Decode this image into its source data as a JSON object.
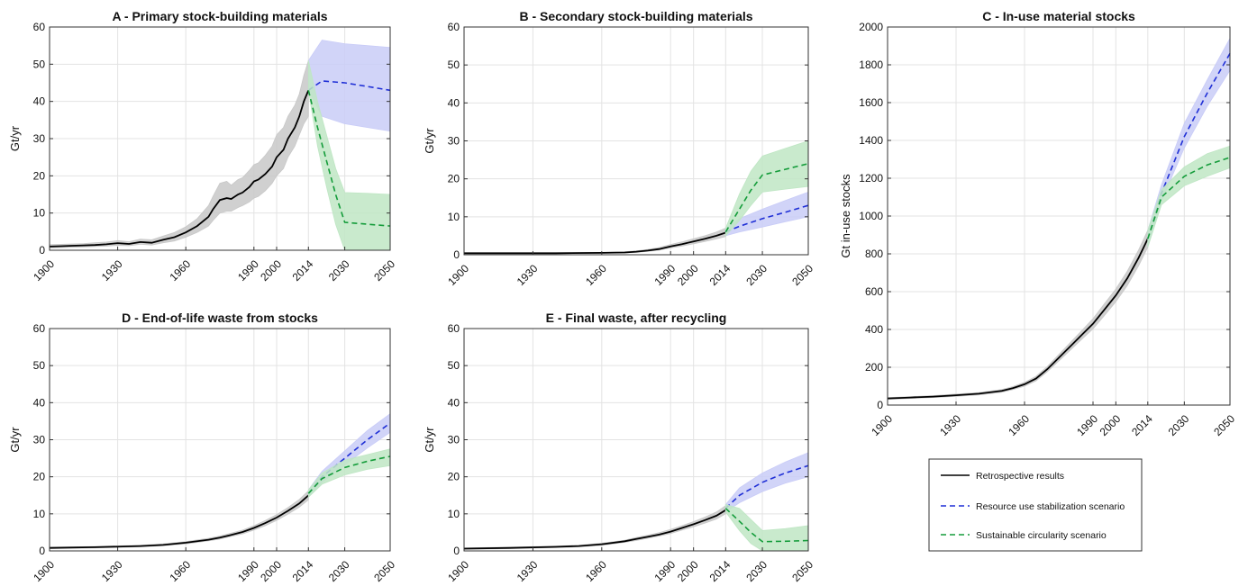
{
  "colors": {
    "historical": "#000000",
    "historical_band": "#c8c8c8",
    "stabilization": "#1f2fd6",
    "stabilization_band": "#c9ccf7",
    "circularity": "#149c3a",
    "circularity_band": "#bfe6c4",
    "grid": "#e3e3e3"
  },
  "legend": {
    "entries": [
      {
        "label": "Retrospective results",
        "style": "solid",
        "color": "#000000"
      },
      {
        "label": "Resource use stabilization scenario",
        "style": "dashed",
        "color": "#1f2fd6"
      },
      {
        "label": "Sustainable circularity scenario",
        "style": "dashed",
        "color": "#149c3a"
      }
    ]
  },
  "chart_data": [
    {
      "id": "A",
      "type": "line",
      "title": "A - Primary stock-building materials",
      "ylabel": "Gt/yr",
      "ylim": [
        0,
        60
      ],
      "yticks": [
        0,
        10,
        20,
        30,
        40,
        50,
        60
      ],
      "xticks": [
        1900,
        1930,
        1960,
        1990,
        2000,
        2014,
        2030,
        2050
      ],
      "grid": true,
      "series": [
        {
          "kind": "historical",
          "x": [
            1900,
            1905,
            1910,
            1915,
            1920,
            1925,
            1930,
            1935,
            1940,
            1945,
            1950,
            1955,
            1960,
            1965,
            1970,
            1972,
            1975,
            1978,
            1980,
            1983,
            1985,
            1988,
            1990,
            1992,
            1995,
            1998,
            2000,
            2003,
            2005,
            2008,
            2010,
            2012,
            2014
          ],
          "y": [
            1,
            1.1,
            1.2,
            1.3,
            1.4,
            1.6,
            1.9,
            1.7,
            2.2,
            2.0,
            2.8,
            3.5,
            4.8,
            6.5,
            9.0,
            11.0,
            13.5,
            14.0,
            13.8,
            15.0,
            15.5,
            17.0,
            18.5,
            19.0,
            20.5,
            22.5,
            25.0,
            27.0,
            30.0,
            33.0,
            36.0,
            40.0,
            43.0
          ],
          "lower": [
            0.6,
            0.7,
            0.8,
            0.9,
            1.0,
            1.1,
            1.3,
            1.2,
            1.6,
            1.4,
            2.0,
            2.5,
            3.5,
            4.8,
            6.5,
            8.0,
            10.0,
            10.5,
            10.5,
            11.5,
            12.0,
            13.0,
            14.0,
            14.5,
            16.0,
            18.0,
            20.0,
            22.0,
            25.0,
            28.0,
            31.0,
            34.0,
            36.0
          ],
          "upper": [
            1.5,
            1.6,
            1.7,
            1.8,
            2.0,
            2.2,
            2.6,
            2.3,
            3.0,
            2.8,
            3.8,
            4.8,
            6.3,
            8.5,
            12.0,
            14.5,
            18.0,
            18.5,
            17.5,
            19.0,
            19.5,
            21.5,
            23.0,
            23.5,
            25.5,
            28.0,
            31.0,
            33.0,
            36.0,
            39.0,
            42.0,
            47.0,
            51.0
          ]
        },
        {
          "name": "Resource use stabilization scenario",
          "kind": "stabilization",
          "x": [
            2014,
            2020,
            2030,
            2040,
            2050
          ],
          "y": [
            43,
            45.5,
            45,
            44,
            43
          ],
          "lower": [
            43,
            36,
            34,
            33,
            32
          ],
          "upper": [
            51,
            56.5,
            55.5,
            55,
            54.5
          ]
        },
        {
          "name": "Sustainable circularity scenario",
          "kind": "circularity",
          "x": [
            2014,
            2018,
            2022,
            2026,
            2030,
            2040,
            2050
          ],
          "y": [
            43,
            33,
            24,
            15,
            7.5,
            7.0,
            6.5
          ],
          "lower": [
            43,
            28,
            17,
            7,
            0,
            0,
            0
          ],
          "upper": [
            51,
            40,
            31,
            22,
            15.5,
            15.3,
            15.0
          ]
        }
      ]
    },
    {
      "id": "B",
      "type": "line",
      "title": "B - Secondary stock-building materials",
      "ylabel": "Gt/yr",
      "ylim": [
        0,
        60
      ],
      "yticks": [
        0,
        10,
        20,
        30,
        40,
        50,
        60
      ],
      "xticks": [
        1900,
        1930,
        1960,
        1990,
        2000,
        2014,
        2030,
        2050
      ],
      "grid": true,
      "series": [
        {
          "kind": "historical",
          "x": [
            1900,
            1920,
            1940,
            1960,
            1970,
            1975,
            1980,
            1985,
            1990,
            1995,
            2000,
            2005,
            2010,
            2014
          ],
          "y": [
            0.4,
            0.4,
            0.4,
            0.5,
            0.6,
            0.8,
            1.1,
            1.5,
            2.2,
            2.8,
            3.5,
            4.2,
            5.0,
            5.8
          ],
          "lower": [
            0.3,
            0.3,
            0.3,
            0.4,
            0.5,
            0.6,
            0.9,
            1.2,
            1.8,
            2.3,
            2.9,
            3.5,
            4.2,
            4.8
          ],
          "upper": [
            0.5,
            0.5,
            0.5,
            0.6,
            0.8,
            1.0,
            1.4,
            1.9,
            2.7,
            3.4,
            4.2,
            5.0,
            6.0,
            7.0
          ]
        },
        {
          "name": "Resource use stabilization scenario",
          "kind": "stabilization",
          "x": [
            2014,
            2020,
            2030,
            2040,
            2050
          ],
          "y": [
            6,
            7.5,
            9.5,
            11.2,
            13
          ],
          "lower": [
            5,
            6.0,
            7.3,
            8.7,
            10
          ],
          "upper": [
            7,
            9.5,
            12.0,
            14.3,
            16.5
          ]
        },
        {
          "name": "Sustainable circularity scenario",
          "kind": "circularity",
          "x": [
            2014,
            2020,
            2025,
            2030,
            2040,
            2050
          ],
          "y": [
            6,
            12,
            17,
            21,
            22.5,
            24
          ],
          "lower": [
            5,
            9,
            13,
            16.5,
            17.3,
            18
          ],
          "upper": [
            7,
            16,
            22,
            26,
            28,
            30
          ]
        }
      ]
    },
    {
      "id": "C",
      "type": "line",
      "title": "C - In-use material stocks",
      "ylabel": "Gt in-use stocks",
      "ylim": [
        0,
        2000
      ],
      "yticks": [
        0,
        200,
        400,
        600,
        800,
        1000,
        1200,
        1400,
        1600,
        1800,
        2000
      ],
      "xticks": [
        1900,
        1930,
        1960,
        1990,
        2000,
        2014,
        2030,
        2050
      ],
      "grid": true,
      "series": [
        {
          "kind": "historical",
          "x": [
            1900,
            1910,
            1920,
            1930,
            1940,
            1950,
            1955,
            1960,
            1965,
            1970,
            1975,
            1980,
            1985,
            1990,
            1995,
            2000,
            2005,
            2010,
            2014
          ],
          "y": [
            35,
            40,
            45,
            52,
            60,
            75,
            90,
            110,
            140,
            190,
            250,
            310,
            370,
            430,
            505,
            580,
            670,
            780,
            880
          ],
          "lower": [
            30,
            35,
            40,
            46,
            54,
            68,
            82,
            100,
            128,
            176,
            233,
            290,
            347,
            403,
            474,
            546,
            632,
            738,
            835
          ],
          "upper": [
            40,
            45,
            50,
            58,
            66,
            82,
            98,
            120,
            152,
            204,
            267,
            330,
            393,
            457,
            536,
            614,
            708,
            822,
            925
          ]
        },
        {
          "name": "Resource use stabilization scenario",
          "kind": "stabilization",
          "x": [
            2014,
            2020,
            2030,
            2040,
            2050
          ],
          "y": [
            880,
            1120,
            1420,
            1650,
            1860
          ],
          "lower": [
            835,
            1080,
            1360,
            1580,
            1770
          ],
          "upper": [
            925,
            1165,
            1490,
            1720,
            1940
          ]
        },
        {
          "name": "Sustainable circularity scenario",
          "kind": "circularity",
          "x": [
            2014,
            2020,
            2030,
            2040,
            2050
          ],
          "y": [
            880,
            1100,
            1210,
            1270,
            1310
          ],
          "lower": [
            835,
            1060,
            1160,
            1210,
            1255
          ],
          "upper": [
            925,
            1140,
            1260,
            1330,
            1370
          ]
        }
      ]
    },
    {
      "id": "D",
      "type": "line",
      "title": "D - End-of-life waste from stocks",
      "ylabel": "Gt/yr",
      "ylim": [
        0,
        60
      ],
      "yticks": [
        0,
        10,
        20,
        30,
        40,
        50,
        60
      ],
      "xticks": [
        1900,
        1930,
        1960,
        1990,
        2000,
        2014,
        2030,
        2050
      ],
      "grid": true,
      "series": [
        {
          "kind": "historical",
          "x": [
            1900,
            1920,
            1940,
            1950,
            1960,
            1970,
            1975,
            1980,
            1985,
            1990,
            1995,
            2000,
            2005,
            2010,
            2014
          ],
          "y": [
            0.8,
            1.0,
            1.3,
            1.6,
            2.2,
            3.0,
            3.6,
            4.3,
            5.1,
            6.2,
            7.5,
            9.0,
            10.8,
            12.8,
            15.0
          ],
          "lower": [
            0.6,
            0.8,
            1.1,
            1.4,
            1.9,
            2.7,
            3.2,
            3.9,
            4.6,
            5.6,
            6.8,
            8.2,
            9.9,
            11.8,
            13.8
          ],
          "upper": [
            1.0,
            1.2,
            1.5,
            1.9,
            2.5,
            3.4,
            4.0,
            4.8,
            5.6,
            6.8,
            8.2,
            9.8,
            11.7,
            13.9,
            16.2
          ]
        },
        {
          "name": "Resource use stabilization scenario",
          "kind": "stabilization",
          "x": [
            2014,
            2020,
            2030,
            2040,
            2050
          ],
          "y": [
            15.5,
            20,
            25,
            30,
            34.5
          ],
          "lower": [
            14.5,
            18.5,
            23.2,
            27.8,
            32
          ],
          "upper": [
            16.5,
            21.5,
            27,
            32.5,
            37
          ]
        },
        {
          "name": "Sustainable circularity scenario",
          "kind": "circularity",
          "x": [
            2014,
            2020,
            2030,
            2040,
            2050
          ],
          "y": [
            15.5,
            19.5,
            22.5,
            24.2,
            25.5
          ],
          "lower": [
            14.5,
            18,
            20.5,
            22,
            23
          ],
          "upper": [
            16.5,
            21,
            24.5,
            26,
            27.5
          ]
        }
      ]
    },
    {
      "id": "E",
      "type": "line",
      "title": "E - Final waste, after recycling",
      "ylabel": "Gt/yr",
      "ylim": [
        0,
        60
      ],
      "yticks": [
        0,
        10,
        20,
        30,
        40,
        50,
        60
      ],
      "xticks": [
        1900,
        1930,
        1960,
        1990,
        2000,
        2014,
        2030,
        2050
      ],
      "grid": true,
      "series": [
        {
          "kind": "historical",
          "x": [
            1900,
            1920,
            1940,
            1950,
            1960,
            1970,
            1975,
            1980,
            1985,
            1990,
            1995,
            2000,
            2005,
            2010,
            2014
          ],
          "y": [
            0.6,
            0.8,
            1.1,
            1.3,
            1.8,
            2.6,
            3.2,
            3.8,
            4.4,
            5.2,
            6.2,
            7.2,
            8.3,
            9.5,
            11.0
          ],
          "lower": [
            0.4,
            0.6,
            0.9,
            1.1,
            1.5,
            2.3,
            2.8,
            3.4,
            4.0,
            4.7,
            5.6,
            6.5,
            7.5,
            8.6,
            10.0
          ],
          "upper": [
            0.8,
            1.0,
            1.3,
            1.5,
            2.1,
            2.9,
            3.6,
            4.2,
            4.9,
            5.8,
            6.8,
            7.9,
            9.1,
            10.5,
            12.2
          ]
        },
        {
          "name": "Resource use stabilization scenario",
          "kind": "stabilization",
          "x": [
            2014,
            2020,
            2030,
            2040,
            2050
          ],
          "y": [
            11.5,
            15,
            18.5,
            21,
            23
          ],
          "lower": [
            10.5,
            13,
            16,
            18.3,
            20
          ],
          "upper": [
            12.5,
            17,
            21,
            24,
            26.5
          ]
        },
        {
          "name": "Sustainable circularity scenario",
          "kind": "circularity",
          "x": [
            2014,
            2020,
            2025,
            2030,
            2040,
            2050
          ],
          "y": [
            11.5,
            8,
            5,
            2.5,
            2.6,
            2.8
          ],
          "lower": [
            10.5,
            5.5,
            2,
            0,
            0,
            0
          ],
          "upper": [
            12.5,
            11.5,
            8.5,
            5.5,
            6.0,
            6.8
          ]
        }
      ]
    }
  ]
}
